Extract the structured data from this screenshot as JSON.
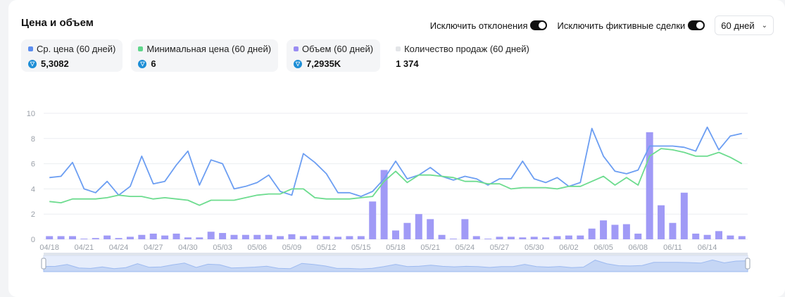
{
  "header": {
    "title": "Цена и объем"
  },
  "controls": {
    "toggle_outliers_label": "Исключить отклонения",
    "toggle_fake_label": "Исключить фиктивные сделки",
    "period_value": "60 дней"
  },
  "stats": [
    {
      "label": "Ср. цена (60 дней)",
      "value": "5,3082",
      "color": "#5b8def",
      "has_coin": true
    },
    {
      "label": "Минимальная цена (60 дней)",
      "value": "6",
      "color": "#5fd68b",
      "has_coin": true
    },
    {
      "label": "Объем (60 дней)",
      "value": "7,2935K",
      "color": "#9a8cf2",
      "has_coin": true
    },
    {
      "label": "Количество продаж (60 дней)",
      "value": "1 374",
      "color": "#e3e5e8",
      "has_coin": false
    }
  ],
  "chart_data": {
    "type": "bar+line",
    "ylim": [
      0,
      10
    ],
    "yticks": [
      0,
      2,
      4,
      6,
      8,
      10
    ],
    "xtick_labels": [
      "04/18",
      "04/21",
      "04/24",
      "04/27",
      "04/30",
      "05/03",
      "05/06",
      "05/09",
      "05/12",
      "05/15",
      "05/18",
      "05/21",
      "05/24",
      "05/27",
      "05/30",
      "06/02",
      "06/05",
      "06/08",
      "06/11",
      "06/14"
    ],
    "grid": true,
    "legend": "top",
    "series": [
      {
        "name": "Ср. цена (60 дней)",
        "type": "line",
        "color": "#6c9ef2",
        "values": [
          4.9,
          5.0,
          6.1,
          4.0,
          3.7,
          4.6,
          3.5,
          4.2,
          6.6,
          4.4,
          4.6,
          5.9,
          7.0,
          4.3,
          6.3,
          6.0,
          4.0,
          4.2,
          4.5,
          5.1,
          3.8,
          3.5,
          6.8,
          6.1,
          5.2,
          3.7,
          3.7,
          3.4,
          3.8,
          4.8,
          6.2,
          4.8,
          5.1,
          5.7,
          5.0,
          4.7,
          5.0,
          4.8,
          4.3,
          4.8,
          4.8,
          6.2,
          4.8,
          4.5,
          4.9,
          4.2,
          4.5,
          8.8,
          6.6,
          5.4,
          5.2,
          5.5,
          7.4,
          7.4,
          7.4,
          7.3,
          7.0,
          8.9,
          7.1,
          8.2,
          8.4
        ]
      },
      {
        "name": "Минимальная цена (60 дней)",
        "type": "line",
        "color": "#6ddc8f",
        "values": [
          3.0,
          2.9,
          3.2,
          3.2,
          3.2,
          3.3,
          3.5,
          3.4,
          3.4,
          3.2,
          3.3,
          3.2,
          3.1,
          2.7,
          3.1,
          3.1,
          3.1,
          3.3,
          3.5,
          3.6,
          3.6,
          4.0,
          4.0,
          3.3,
          3.2,
          3.2,
          3.2,
          3.3,
          3.4,
          4.6,
          5.4,
          4.5,
          5.1,
          5.1,
          5.0,
          4.9,
          4.6,
          4.6,
          4.4,
          4.4,
          4.0,
          4.1,
          4.1,
          4.1,
          4.0,
          4.2,
          4.2,
          4.6,
          5.0,
          4.3,
          4.9,
          4.3,
          6.6,
          7.2,
          7.1,
          6.9,
          6.6,
          6.6,
          6.9,
          6.5,
          6.0
        ]
      },
      {
        "name": "Объем (60 дней)",
        "type": "bar",
        "color": "#a09af6",
        "values": [
          0.25,
          0.25,
          0.25,
          0.05,
          0.1,
          0.3,
          0.1,
          0.2,
          0.35,
          0.45,
          0.3,
          0.45,
          0.15,
          0.15,
          0.6,
          0.5,
          0.35,
          0.35,
          0.35,
          0.35,
          0.25,
          0.4,
          0.25,
          0.3,
          0.25,
          0.2,
          0.25,
          0.25,
          3.0,
          5.5,
          0.7,
          1.3,
          2.0,
          1.6,
          0.35,
          0.05,
          1.6,
          0.25,
          0.05,
          0.2,
          0.2,
          0.15,
          0.2,
          0.15,
          0.25,
          0.3,
          0.3,
          0.85,
          1.5,
          1.15,
          1.2,
          0.45,
          8.5,
          2.7,
          1.3,
          3.7,
          0.45,
          0.35,
          0.65,
          0.3,
          0.25
        ]
      }
    ]
  }
}
